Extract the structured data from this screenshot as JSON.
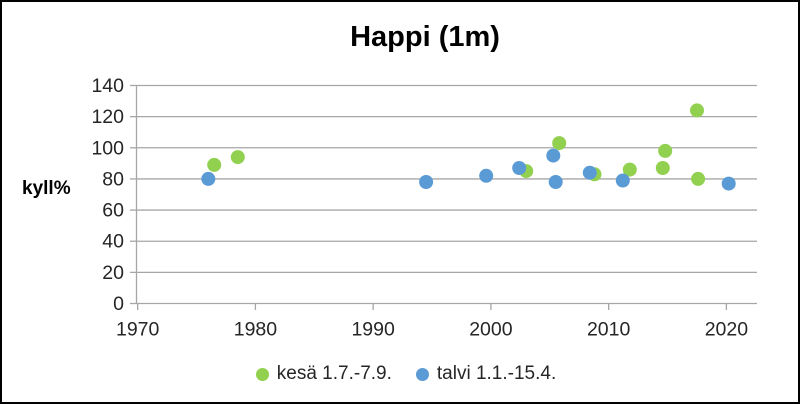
{
  "window": {
    "background": "#FFFFFF",
    "border_color": "#000000"
  },
  "chart_data": {
    "type": "scatter",
    "title": "Happi (1m)",
    "ylabel": "kyll%",
    "xlabel": "",
    "xlim": [
      1969.9,
      2022.6
    ],
    "ylim": [
      0,
      140
    ],
    "x_ticks": [
      1970,
      1980,
      1990,
      2000,
      2010,
      2020
    ],
    "y_ticks": [
      0,
      20,
      40,
      60,
      80,
      100,
      120,
      140
    ],
    "grid": true,
    "legend_position": "bottom",
    "colors": {
      "grid": "#A6A6A6",
      "axis": "#A6A6A6",
      "tick_text": "#262626",
      "title_text": "#000000"
    },
    "series": [
      {
        "name": "kesä 1.7.-7.9.",
        "color": "#92D050",
        "points": [
          [
            1976.5,
            89
          ],
          [
            1978.5,
            94
          ],
          [
            2003.0,
            85
          ],
          [
            2005.8,
            103
          ],
          [
            2008.8,
            83
          ],
          [
            2011.8,
            86
          ],
          [
            2014.6,
            87
          ],
          [
            2014.8,
            98
          ],
          [
            2017.5,
            124
          ],
          [
            2017.6,
            80
          ]
        ]
      },
      {
        "name": "talvi 1.1.-15.4.",
        "color": "#5B9BD5",
        "points": [
          [
            1976.0,
            80
          ],
          [
            1994.5,
            78
          ],
          [
            1999.6,
            82
          ],
          [
            2002.4,
            87
          ],
          [
            2005.3,
            95
          ],
          [
            2005.5,
            78
          ],
          [
            2008.4,
            84
          ],
          [
            2011.2,
            79
          ],
          [
            2020.2,
            77
          ]
        ]
      }
    ]
  }
}
